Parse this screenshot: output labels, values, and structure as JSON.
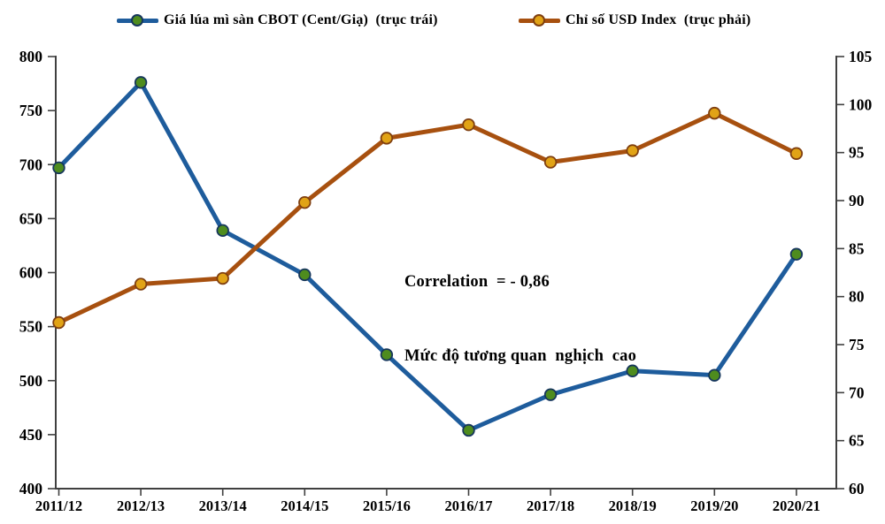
{
  "chart_data": {
    "type": "line",
    "dual_axis": true,
    "grid": false,
    "legend_position": "top",
    "categories": [
      "2011/12",
      "2012/13",
      "2013/14",
      "2014/15",
      "2015/16",
      "2016/17",
      "2017/18",
      "2018/19",
      "2019/20",
      "2020/21"
    ],
    "series": [
      {
        "name": "Giá lúa mì sàn CBOT (Cent/Giạ)  (trục trái)",
        "axis": "left",
        "line_color": "#1e5c9c",
        "marker_color": "#4e8c1e",
        "marker_edge_color": "#16365c",
        "values": [
          697,
          776,
          639,
          598,
          524,
          454,
          487,
          509,
          505,
          617
        ]
      },
      {
        "name": "Chỉ số USD Index  (trục phải)",
        "axis": "right",
        "line_color": "#a7500f",
        "marker_color": "#e1a316",
        "marker_edge_color": "#7f3f10",
        "values": [
          77.3,
          81.3,
          81.9,
          89.8,
          96.5,
          97.9,
          94.0,
          95.2,
          99.1,
          94.9
        ]
      }
    ],
    "left_axis": {
      "min": 400,
      "max": 800,
      "ticks": [
        400,
        450,
        500,
        550,
        600,
        650,
        700,
        750,
        800
      ]
    },
    "right_axis": {
      "min": 60,
      "max": 105,
      "ticks": [
        60,
        65,
        70,
        75,
        80,
        85,
        90,
        95,
        100,
        105
      ]
    },
    "annotation": {
      "line1": "Correlation  = - 0,86",
      "line2": "Mức độ tương quan  nghịch  cao"
    },
    "axis_color": "#404040"
  }
}
